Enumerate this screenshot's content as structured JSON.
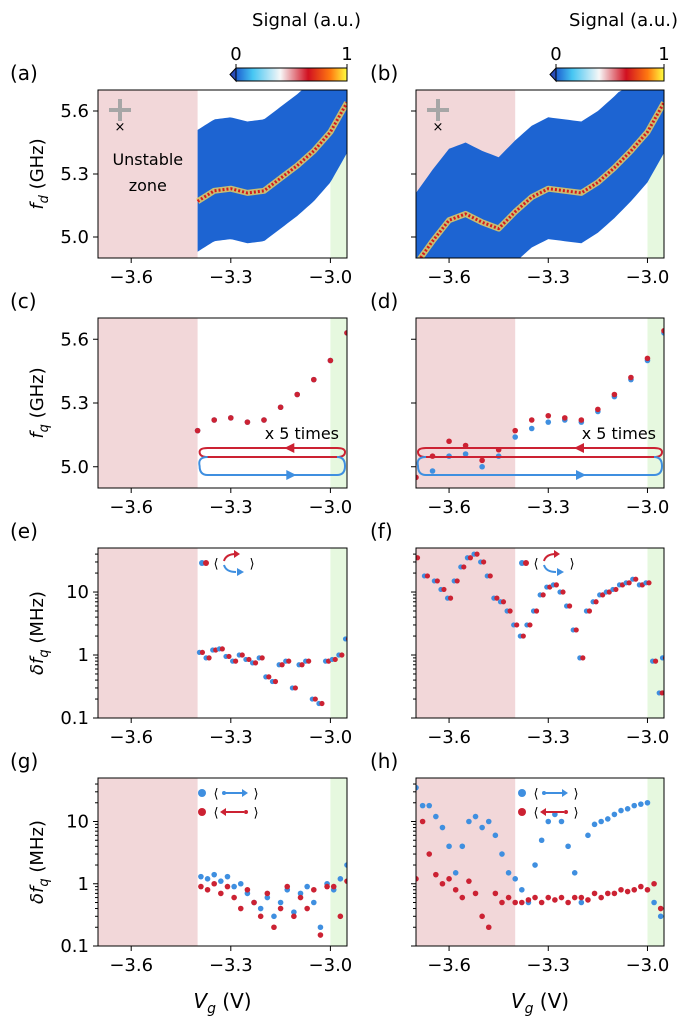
{
  "colors": {
    "unstable": "#f2d7d9",
    "stable_end": "#e6f8df",
    "map_bg": "#1d64d2",
    "trace_blue": "#3f8fe0",
    "trace_red": "#cc2233",
    "cross": "#a6a6a6",
    "zone_text": "#6a6a6a"
  },
  "colorbars": [
    {
      "title": "Signal (a.u.)",
      "min_label": "0",
      "max_label": "1"
    },
    {
      "title": "Signal (a.u.)",
      "min_label": "0",
      "max_label": "1"
    }
  ],
  "shared": {
    "xlabel_prefix": "V",
    "xlabel_sub": "g",
    "xlabel_suffix": " (V)",
    "x_ticks": [
      "−3.6",
      "−3.3",
      "−3.0"
    ],
    "unstable_zone_label": [
      "Unstable",
      "zone"
    ],
    "sweep_note": "x 5 times"
  },
  "chart_data": [
    {
      "panel": "(a)",
      "type": "heatmap",
      "ylabel_main": "f",
      "ylabel_sub": "d",
      "ylabel_unit": " (GHz)",
      "xlim": [
        -3.7,
        -2.95
      ],
      "ylim": [
        4.9,
        5.7
      ],
      "y_ticks": [
        "5.0",
        "5.3",
        "5.6"
      ],
      "unstable_range": [
        -3.7,
        -3.4
      ],
      "stable_range": [
        -3.0,
        -2.95
      ],
      "map_x_start": -3.4,
      "resonance": {
        "x": [
          -3.4,
          -3.35,
          -3.3,
          -3.25,
          -3.2,
          -3.15,
          -3.1,
          -3.05,
          -3.0,
          -2.95
        ],
        "y": [
          5.17,
          5.22,
          5.23,
          5.21,
          5.22,
          5.28,
          5.34,
          5.41,
          5.5,
          5.64
        ]
      }
    },
    {
      "panel": "(b)",
      "type": "heatmap",
      "ylabel_main": "",
      "ylabel_sub": "",
      "ylabel_unit": "",
      "xlim": [
        -3.7,
        -2.95
      ],
      "ylim": [
        4.9,
        5.7
      ],
      "y_ticks": [
        "",
        "",
        ""
      ],
      "unstable_range": [
        -3.7,
        -3.4
      ],
      "stable_range": [
        -3.0,
        -2.95
      ],
      "map_x_start": -3.7,
      "resonance": {
        "x": [
          -3.7,
          -3.65,
          -3.6,
          -3.55,
          -3.5,
          -3.45,
          -3.4,
          -3.35,
          -3.3,
          -3.25,
          -3.2,
          -3.15,
          -3.1,
          -3.05,
          -3.0,
          -2.95
        ],
        "y": [
          4.87,
          4.98,
          5.08,
          5.11,
          5.07,
          5.04,
          5.12,
          5.19,
          5.23,
          5.22,
          5.21,
          5.26,
          5.33,
          5.41,
          5.5,
          5.64
        ]
      }
    },
    {
      "panel": "(c)",
      "type": "scatter",
      "ylabel_main": "f",
      "ylabel_sub": "q",
      "ylabel_unit": " (GHz)",
      "xlim": [
        -3.7,
        -2.95
      ],
      "ylim": [
        4.9,
        5.7
      ],
      "y_ticks": [
        "5.0",
        "5.3",
        "5.6"
      ],
      "unstable_range": [
        -3.7,
        -3.4
      ],
      "stable_range": [
        -3.0,
        -2.95
      ],
      "series": [
        {
          "name": "forward",
          "color": "blue",
          "x": [
            -3.4,
            -3.35,
            -3.3,
            -3.25,
            -3.2,
            -3.15,
            -3.1,
            -3.05,
            -3.0,
            -2.95
          ],
          "y": [
            5.17,
            5.22,
            5.23,
            5.21,
            5.22,
            5.28,
            5.34,
            5.41,
            5.5,
            5.63
          ]
        },
        {
          "name": "backward",
          "color": "red",
          "x": [
            -3.4,
            -3.35,
            -3.3,
            -3.25,
            -3.2,
            -3.15,
            -3.1,
            -3.05,
            -3.0,
            -2.95
          ],
          "y": [
            5.17,
            5.22,
            5.23,
            5.21,
            5.22,
            5.28,
            5.34,
            5.41,
            5.5,
            5.63
          ]
        }
      ],
      "sweep_range": [
        -3.4,
        -2.95
      ]
    },
    {
      "panel": "(d)",
      "type": "scatter",
      "ylabel_main": "",
      "ylabel_sub": "",
      "ylabel_unit": "",
      "xlim": [
        -3.7,
        -2.95
      ],
      "ylim": [
        4.9,
        5.7
      ],
      "y_ticks": [
        "",
        "",
        ""
      ],
      "unstable_range": [
        -3.7,
        -3.4
      ],
      "stable_range": [
        -3.0,
        -2.95
      ],
      "series": [
        {
          "name": "forward",
          "color": "blue",
          "x": [
            -3.7,
            -3.65,
            -3.6,
            -3.55,
            -3.5,
            -3.45,
            -3.4,
            -3.35,
            -3.3,
            -3.25,
            -3.2,
            -3.15,
            -3.1,
            -3.05,
            -3.0,
            -2.95
          ],
          "y": [
            4.89,
            4.98,
            5.05,
            5.06,
            5.0,
            5.05,
            5.14,
            5.18,
            5.21,
            5.22,
            5.21,
            5.26,
            5.33,
            5.41,
            5.5,
            5.63
          ]
        },
        {
          "name": "backward",
          "color": "red",
          "x": [
            -3.7,
            -3.65,
            -3.6,
            -3.55,
            -3.5,
            -3.45,
            -3.4,
            -3.35,
            -3.3,
            -3.25,
            -3.2,
            -3.15,
            -3.1,
            -3.05,
            -3.0,
            -2.95
          ],
          "y": [
            4.95,
            5.05,
            5.12,
            5.1,
            5.03,
            5.08,
            5.17,
            5.22,
            5.24,
            5.23,
            5.22,
            5.27,
            5.34,
            5.42,
            5.51,
            5.64
          ]
        }
      ],
      "sweep_range": [
        -3.7,
        -2.95
      ]
    },
    {
      "panel": "(e)",
      "type": "scatter",
      "ylabel_main": "δf",
      "ylabel_sub": "q",
      "ylabel_unit": " (MHz)",
      "xlim": [
        -3.7,
        -2.95
      ],
      "yscale": "log",
      "ylim": [
        0.1,
        50
      ],
      "y_ticks": [
        "0.1",
        "1",
        "10"
      ],
      "unstable_range": [
        -3.7,
        -3.4
      ],
      "stable_range": [
        -3.0,
        -2.95
      ],
      "legend": "loop",
      "series": [
        {
          "name": "loop",
          "color": "mixed",
          "x": [
            -3.39,
            -3.37,
            -3.35,
            -3.33,
            -3.31,
            -3.29,
            -3.27,
            -3.25,
            -3.23,
            -3.21,
            -3.19,
            -3.17,
            -3.15,
            -3.13,
            -3.11,
            -3.09,
            -3.07,
            -3.05,
            -3.03,
            -3.01,
            -2.99,
            -2.97,
            -2.95
          ],
          "y": [
            1.1,
            0.9,
            1.2,
            1.25,
            0.95,
            0.8,
            1.0,
            0.85,
            0.75,
            0.9,
            0.45,
            0.38,
            0.7,
            0.8,
            0.3,
            0.7,
            0.8,
            0.2,
            0.17,
            0.8,
            0.85,
            1.0,
            1.8
          ]
        }
      ]
    },
    {
      "panel": "(f)",
      "type": "scatter",
      "ylabel_main": "",
      "ylabel_sub": "",
      "ylabel_unit": "",
      "xlim": [
        -3.7,
        -2.95
      ],
      "yscale": "log",
      "ylim": [
        0.1,
        50
      ],
      "y_ticks": [
        "",
        "",
        ""
      ],
      "unstable_range": [
        -3.7,
        -3.4
      ],
      "stable_range": [
        -3.0,
        -2.95
      ],
      "legend": "loop",
      "series": [
        {
          "name": "loop",
          "color": "mixed",
          "x": [
            -3.7,
            -3.67,
            -3.64,
            -3.62,
            -3.6,
            -3.58,
            -3.56,
            -3.54,
            -3.52,
            -3.5,
            -3.48,
            -3.46,
            -3.44,
            -3.42,
            -3.4,
            -3.38,
            -3.36,
            -3.34,
            -3.32,
            -3.3,
            -3.28,
            -3.26,
            -3.24,
            -3.22,
            -3.2,
            -3.18,
            -3.16,
            -3.14,
            -3.12,
            -3.1,
            -3.08,
            -3.06,
            -3.04,
            -3.02,
            -3.0,
            -2.98,
            -2.96,
            -2.95
          ],
          "y": [
            35,
            18,
            15,
            11,
            8,
            15,
            25,
            35,
            40,
            30,
            18,
            8,
            7,
            5,
            3,
            2,
            3,
            5,
            9,
            12,
            13,
            10,
            6,
            2.5,
            0.9,
            5,
            7,
            9,
            10,
            11,
            13,
            14,
            16,
            13,
            14,
            0.8,
            0.25,
            0.9
          ]
        }
      ]
    },
    {
      "panel": "(g)",
      "type": "scatter",
      "ylabel_main": "δf",
      "ylabel_sub": "q",
      "ylabel_unit": " (MHz)",
      "xlim": [
        -3.7,
        -2.95
      ],
      "yscale": "log",
      "ylim": [
        0.1,
        50
      ],
      "y_ticks": [
        "0.1",
        "1",
        "10"
      ],
      "unstable_range": [
        -3.7,
        -3.4
      ],
      "stable_range": [
        -3.0,
        -2.95
      ],
      "legend": "sweeps",
      "series": [
        {
          "name": "forward",
          "color": "blue",
          "x": [
            -3.39,
            -3.37,
            -3.35,
            -3.33,
            -3.31,
            -3.29,
            -3.27,
            -3.25,
            -3.23,
            -3.21,
            -3.19,
            -3.17,
            -3.15,
            -3.13,
            -3.11,
            -3.09,
            -3.07,
            -3.05,
            -3.03,
            -3.01,
            -2.99,
            -2.97,
            -2.95
          ],
          "y": [
            1.3,
            1.2,
            1.4,
            1.1,
            1.3,
            0.9,
            1.0,
            0.7,
            0.5,
            0.4,
            0.6,
            0.3,
            0.5,
            0.8,
            0.35,
            0.7,
            0.9,
            0.5,
            0.2,
            1.0,
            0.8,
            1.2,
            2.0
          ]
        },
        {
          "name": "backward",
          "color": "red",
          "x": [
            -3.39,
            -3.37,
            -3.35,
            -3.33,
            -3.31,
            -3.29,
            -3.27,
            -3.25,
            -3.23,
            -3.21,
            -3.19,
            -3.17,
            -3.15,
            -3.13,
            -3.11,
            -3.09,
            -3.07,
            -3.05,
            -3.03,
            -3.01,
            -2.99,
            -2.97,
            -2.95
          ],
          "y": [
            0.9,
            0.8,
            1.0,
            0.7,
            0.9,
            0.6,
            0.4,
            0.8,
            0.5,
            0.3,
            0.7,
            0.2,
            0.4,
            0.9,
            0.3,
            0.6,
            0.4,
            0.8,
            0.15,
            0.9,
            0.9,
            0.3,
            1.1
          ]
        }
      ]
    },
    {
      "panel": "(h)",
      "type": "scatter",
      "ylabel_main": "",
      "ylabel_sub": "",
      "ylabel_unit": "",
      "xlim": [
        -3.7,
        -2.95
      ],
      "yscale": "log",
      "ylim": [
        0.1,
        50
      ],
      "y_ticks": [
        "",
        "",
        ""
      ],
      "unstable_range": [
        -3.7,
        -3.4
      ],
      "stable_range": [
        -3.0,
        -2.95
      ],
      "legend": "sweeps",
      "series": [
        {
          "name": "forward",
          "color": "blue",
          "x": [
            -3.7,
            -3.68,
            -3.66,
            -3.64,
            -3.62,
            -3.6,
            -3.58,
            -3.56,
            -3.54,
            -3.52,
            -3.5,
            -3.48,
            -3.46,
            -3.44,
            -3.42,
            -3.4,
            -3.38,
            -3.36,
            -3.34,
            -3.32,
            -3.3,
            -3.28,
            -3.26,
            -3.24,
            -3.22,
            -3.2,
            -3.18,
            -3.16,
            -3.14,
            -3.12,
            -3.1,
            -3.08,
            -3.06,
            -3.04,
            -3.02,
            -3.0,
            -2.98,
            -2.96
          ],
          "y": [
            35,
            18,
            18,
            12,
            8,
            4,
            1.5,
            4,
            10,
            12,
            8,
            10,
            6,
            3,
            1.5,
            1.2,
            0.8,
            0.5,
            2,
            5,
            10,
            13,
            10,
            4,
            1.5,
            0.5,
            6,
            9,
            10,
            11,
            13,
            15,
            16,
            18,
            19,
            20,
            0.5,
            0.3
          ]
        },
        {
          "name": "backward",
          "color": "red",
          "x": [
            -3.7,
            -3.68,
            -3.66,
            -3.64,
            -3.62,
            -3.6,
            -3.58,
            -3.56,
            -3.54,
            -3.52,
            -3.5,
            -3.48,
            -3.46,
            -3.44,
            -3.42,
            -3.4,
            -3.38,
            -3.36,
            -3.34,
            -3.32,
            -3.3,
            -3.28,
            -3.26,
            -3.24,
            -3.22,
            -3.2,
            -3.18,
            -3.16,
            -3.14,
            -3.12,
            -3.1,
            -3.08,
            -3.06,
            -3.04,
            -3.02,
            -3.0,
            -2.98,
            -2.96
          ],
          "y": [
            1.2,
            10,
            3,
            1.4,
            1.0,
            1.2,
            0.8,
            0.6,
            1.1,
            0.7,
            0.3,
            0.2,
            0.7,
            0.5,
            0.6,
            0.5,
            0.5,
            0.55,
            0.6,
            0.5,
            0.6,
            0.55,
            0.6,
            0.5,
            0.6,
            0.6,
            0.55,
            0.7,
            0.6,
            0.7,
            0.7,
            0.8,
            0.75,
            0.8,
            0.9,
            0.8,
            1.0,
            0.4
          ]
        }
      ]
    }
  ]
}
